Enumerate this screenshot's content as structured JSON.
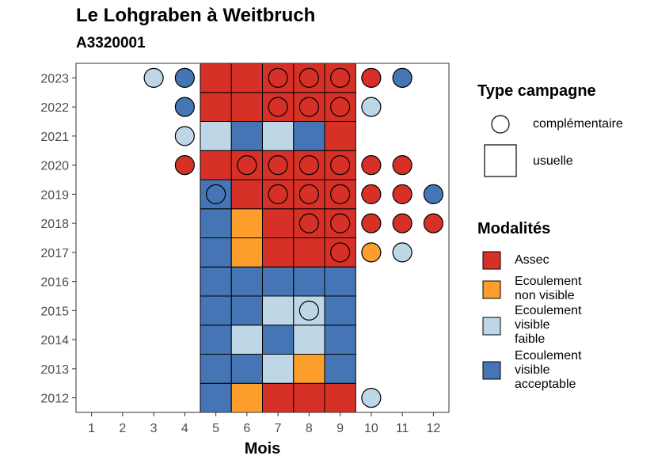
{
  "chart_data": {
    "type": "heatmap",
    "title": "Le Lohgraben à Weitbruch",
    "subtitle": "A3320001",
    "xlabel": "Mois",
    "ylabel": "",
    "x_ticks": [
      "1",
      "2",
      "3",
      "4",
      "5",
      "6",
      "7",
      "8",
      "9",
      "10",
      "11",
      "12"
    ],
    "y_ticks": [
      "2012",
      "2013",
      "2014",
      "2015",
      "2016",
      "2017",
      "2018",
      "2019",
      "2020",
      "2021",
      "2022",
      "2023"
    ],
    "modalities": [
      {
        "key": "A",
        "label_lines": [
          "Assec"
        ],
        "color": "#d73027"
      },
      {
        "key": "N",
        "label_lines": [
          "Ecoulement",
          "non visible"
        ],
        "color": "#fc9d2c"
      },
      {
        "key": "F",
        "label_lines": [
          "Ecoulement",
          "visible",
          "faible"
        ],
        "color": "#bdd7e7"
      },
      {
        "key": "V",
        "label_lines": [
          "Ecoulement",
          "visible",
          "acceptable"
        ],
        "color": "#4575b4"
      }
    ],
    "campaign_types": [
      {
        "key": "complementaire",
        "label": "complémentaire",
        "shape": "circle"
      },
      {
        "key": "usuelle",
        "label": "usuelle",
        "shape": "square"
      }
    ],
    "legend_titles": {
      "type": "Type campagne",
      "modalites": "Modalités"
    },
    "usual_campaigns": [
      {
        "year": 2012,
        "month": 5,
        "mod": "V"
      },
      {
        "year": 2012,
        "month": 6,
        "mod": "N"
      },
      {
        "year": 2012,
        "month": 7,
        "mod": "A"
      },
      {
        "year": 2012,
        "month": 8,
        "mod": "A"
      },
      {
        "year": 2012,
        "month": 9,
        "mod": "A"
      },
      {
        "year": 2013,
        "month": 5,
        "mod": "V"
      },
      {
        "year": 2013,
        "month": 6,
        "mod": "V"
      },
      {
        "year": 2013,
        "month": 7,
        "mod": "F"
      },
      {
        "year": 2013,
        "month": 8,
        "mod": "N"
      },
      {
        "year": 2013,
        "month": 9,
        "mod": "V"
      },
      {
        "year": 2014,
        "month": 5,
        "mod": "V"
      },
      {
        "year": 2014,
        "month": 6,
        "mod": "F"
      },
      {
        "year": 2014,
        "month": 7,
        "mod": "V"
      },
      {
        "year": 2014,
        "month": 8,
        "mod": "F"
      },
      {
        "year": 2014,
        "month": 9,
        "mod": "V"
      },
      {
        "year": 2015,
        "month": 5,
        "mod": "V"
      },
      {
        "year": 2015,
        "month": 6,
        "mod": "V"
      },
      {
        "year": 2015,
        "month": 7,
        "mod": "F"
      },
      {
        "year": 2015,
        "month": 8,
        "mod": "F"
      },
      {
        "year": 2015,
        "month": 9,
        "mod": "V"
      },
      {
        "year": 2016,
        "month": 5,
        "mod": "V"
      },
      {
        "year": 2016,
        "month": 6,
        "mod": "V"
      },
      {
        "year": 2016,
        "month": 7,
        "mod": "V"
      },
      {
        "year": 2016,
        "month": 8,
        "mod": "V"
      },
      {
        "year": 2016,
        "month": 9,
        "mod": "V"
      },
      {
        "year": 2017,
        "month": 5,
        "mod": "V"
      },
      {
        "year": 2017,
        "month": 6,
        "mod": "N"
      },
      {
        "year": 2017,
        "month": 7,
        "mod": "A"
      },
      {
        "year": 2017,
        "month": 8,
        "mod": "A"
      },
      {
        "year": 2017,
        "month": 9,
        "mod": "A"
      },
      {
        "year": 2018,
        "month": 5,
        "mod": "V"
      },
      {
        "year": 2018,
        "month": 6,
        "mod": "N"
      },
      {
        "year": 2018,
        "month": 7,
        "mod": "A"
      },
      {
        "year": 2018,
        "month": 8,
        "mod": "A"
      },
      {
        "year": 2018,
        "month": 9,
        "mod": "A"
      },
      {
        "year": 2019,
        "month": 5,
        "mod": "V"
      },
      {
        "year": 2019,
        "month": 6,
        "mod": "A"
      },
      {
        "year": 2019,
        "month": 7,
        "mod": "A"
      },
      {
        "year": 2019,
        "month": 8,
        "mod": "A"
      },
      {
        "year": 2019,
        "month": 9,
        "mod": "A"
      },
      {
        "year": 2020,
        "month": 5,
        "mod": "A"
      },
      {
        "year": 2020,
        "month": 6,
        "mod": "A"
      },
      {
        "year": 2020,
        "month": 7,
        "mod": "A"
      },
      {
        "year": 2020,
        "month": 8,
        "mod": "A"
      },
      {
        "year": 2020,
        "month": 9,
        "mod": "A"
      },
      {
        "year": 2021,
        "month": 5,
        "mod": "F"
      },
      {
        "year": 2021,
        "month": 6,
        "mod": "V"
      },
      {
        "year": 2021,
        "month": 7,
        "mod": "F"
      },
      {
        "year": 2021,
        "month": 8,
        "mod": "V"
      },
      {
        "year": 2021,
        "month": 9,
        "mod": "A"
      },
      {
        "year": 2022,
        "month": 5,
        "mod": "A"
      },
      {
        "year": 2022,
        "month": 6,
        "mod": "A"
      },
      {
        "year": 2022,
        "month": 7,
        "mod": "A"
      },
      {
        "year": 2022,
        "month": 8,
        "mod": "A"
      },
      {
        "year": 2022,
        "month": 9,
        "mod": "A"
      },
      {
        "year": 2023,
        "month": 5,
        "mod": "A"
      },
      {
        "year": 2023,
        "month": 6,
        "mod": "A"
      },
      {
        "year": 2023,
        "month": 7,
        "mod": "A"
      },
      {
        "year": 2023,
        "month": 8,
        "mod": "A"
      },
      {
        "year": 2023,
        "month": 9,
        "mod": "A"
      }
    ],
    "complementary_campaigns": [
      {
        "year": 2023,
        "month": 3,
        "mod": "F"
      },
      {
        "year": 2023,
        "month": 4,
        "mod": "V"
      },
      {
        "year": 2023,
        "month": 7,
        "mod": "A"
      },
      {
        "year": 2023,
        "month": 8,
        "mod": "A"
      },
      {
        "year": 2023,
        "month": 9,
        "mod": "A"
      },
      {
        "year": 2023,
        "month": 10,
        "mod": "A"
      },
      {
        "year": 2023,
        "month": 11,
        "mod": "V"
      },
      {
        "year": 2022,
        "month": 4,
        "mod": "V"
      },
      {
        "year": 2022,
        "month": 7,
        "mod": "A"
      },
      {
        "year": 2022,
        "month": 8,
        "mod": "A"
      },
      {
        "year": 2022,
        "month": 9,
        "mod": "A"
      },
      {
        "year": 2022,
        "month": 10,
        "mod": "F"
      },
      {
        "year": 2021,
        "month": 4,
        "mod": "F"
      },
      {
        "year": 2020,
        "month": 4,
        "mod": "A"
      },
      {
        "year": 2020,
        "month": 6,
        "mod": "A"
      },
      {
        "year": 2020,
        "month": 7,
        "mod": "A"
      },
      {
        "year": 2020,
        "month": 8,
        "mod": "A"
      },
      {
        "year": 2020,
        "month": 9,
        "mod": "A"
      },
      {
        "year": 2020,
        "month": 10,
        "mod": "A"
      },
      {
        "year": 2020,
        "month": 11,
        "mod": "A"
      },
      {
        "year": 2019,
        "month": 5,
        "mod": "V"
      },
      {
        "year": 2019,
        "month": 7,
        "mod": "A"
      },
      {
        "year": 2019,
        "month": 8,
        "mod": "A"
      },
      {
        "year": 2019,
        "month": 9,
        "mod": "A"
      },
      {
        "year": 2019,
        "month": 10,
        "mod": "A"
      },
      {
        "year": 2019,
        "month": 11,
        "mod": "A"
      },
      {
        "year": 2019,
        "month": 12,
        "mod": "V"
      },
      {
        "year": 2018,
        "month": 8,
        "mod": "A"
      },
      {
        "year": 2018,
        "month": 9,
        "mod": "A"
      },
      {
        "year": 2018,
        "month": 10,
        "mod": "A"
      },
      {
        "year": 2018,
        "month": 11,
        "mod": "A"
      },
      {
        "year": 2018,
        "month": 12,
        "mod": "A"
      },
      {
        "year": 2017,
        "month": 9,
        "mod": "A"
      },
      {
        "year": 2017,
        "month": 10,
        "mod": "N"
      },
      {
        "year": 2017,
        "month": 11,
        "mod": "F"
      },
      {
        "year": 2015,
        "month": 8,
        "mod": "F"
      },
      {
        "year": 2012,
        "month": 10,
        "mod": "F"
      }
    ]
  }
}
